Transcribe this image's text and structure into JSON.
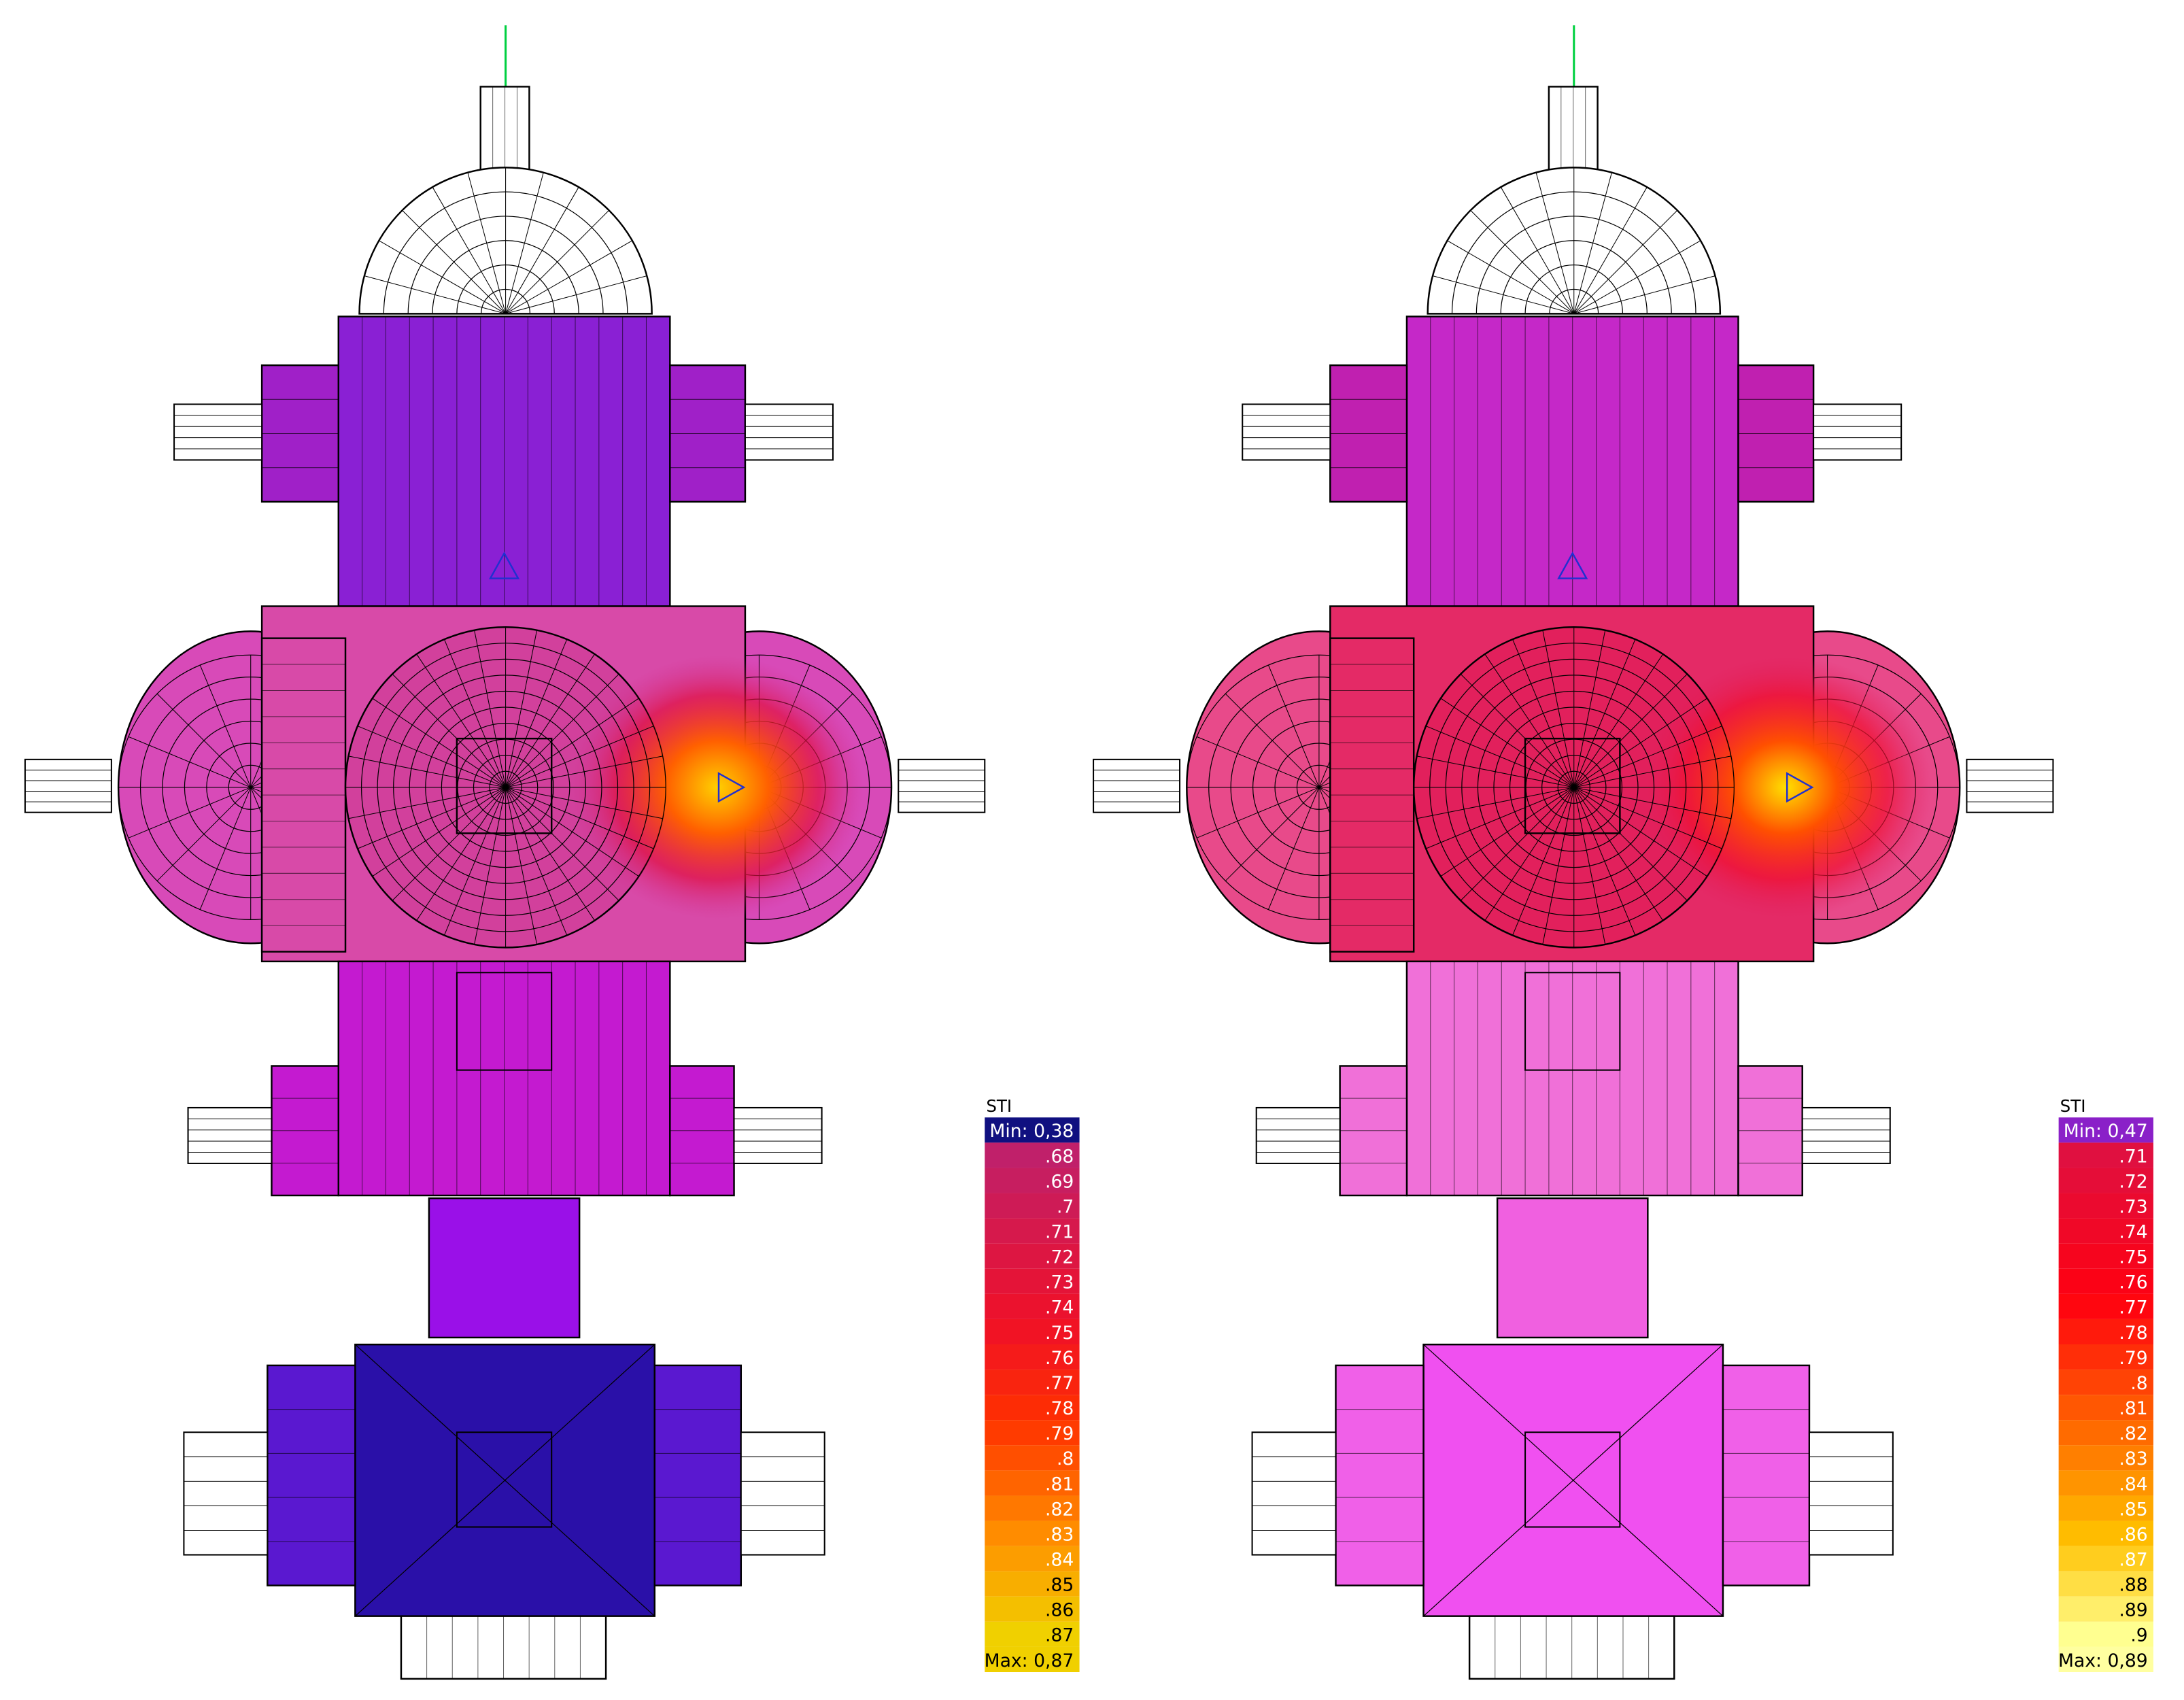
{
  "legends": [
    {
      "title": "STI",
      "min": "Min: 0,38",
      "entries": [
        ".68",
        ".69",
        ".7",
        ".71",
        ".72",
        ".73",
        ".74",
        ".75",
        ".76",
        ".77",
        ".78",
        ".79",
        ".8",
        ".81",
        ".82",
        ".83",
        ".84",
        ".85",
        ".86",
        ".87"
      ],
      "max": "Max: 0,87"
    },
    {
      "title": "STI",
      "min": "Min: 0,47",
      "entries": [
        ".71",
        ".72",
        ".73",
        ".74",
        ".75",
        ".76",
        ".77",
        ".78",
        ".79",
        ".8",
        ".81",
        ".82",
        ".83",
        ".84",
        ".85",
        ".86",
        ".87",
        ".88",
        ".89",
        ".9"
      ],
      "max": "Max: 0,89"
    }
  ]
}
